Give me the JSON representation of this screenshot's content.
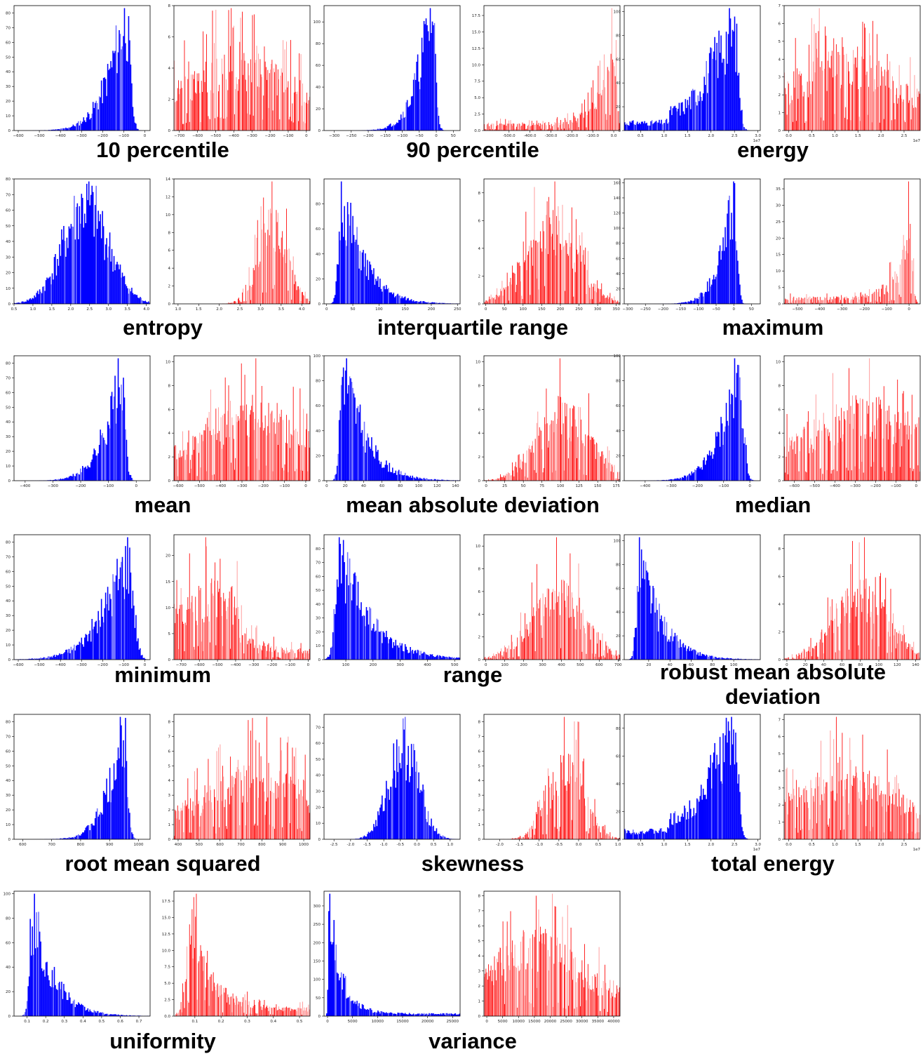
{
  "colors": {
    "left_hist": "#0000ff",
    "right_hist": "#ff0000",
    "axis": "#000000",
    "tick_text": "#222222"
  },
  "chart_data": [
    {
      "caption": "10 percentile",
      "type": "bar",
      "left": {
        "bins": 130,
        "ylim": [
          0,
          85
        ],
        "yticks": [
          0,
          10,
          20,
          30,
          40,
          50,
          60,
          70,
          80
        ],
        "xticks": [
          -600,
          -500,
          -400,
          -300,
          -200,
          -100,
          0
        ],
        "xlim": [
          -620,
          25
        ],
        "shape": "skewleft",
        "peak": -90,
        "spread": 110,
        "seed": 11
      },
      "right": {
        "bins": 160,
        "ylim": [
          0,
          8
        ],
        "yticks": [
          0,
          2,
          4,
          6,
          8
        ],
        "xticks": [
          -700,
          -600,
          -500,
          -400,
          -300,
          -200,
          -100,
          0
        ],
        "xlim": [
          -730,
          20
        ],
        "shape": "flat",
        "center": -380,
        "spread": 260,
        "seed": 12
      }
    },
    {
      "caption": "90 percentile",
      "type": "bar",
      "left": {
        "bins": 130,
        "ylim": [
          0,
          115
        ],
        "yticks": [
          0,
          20,
          40,
          60,
          80,
          100
        ],
        "xticks": [
          -300,
          -250,
          -200,
          -150,
          -100,
          -50,
          0,
          50
        ],
        "xlim": [
          -330,
          70
        ],
        "shape": "skewleft",
        "peak": -12,
        "spread": 55,
        "seed": 21
      },
      "right": {
        "bins": 160,
        "ylim": [
          0,
          19
        ],
        "yticks": [
          0.0,
          2.5,
          5.0,
          7.5,
          10.0,
          12.5,
          15.0,
          17.5
        ],
        "tickfmt": 1,
        "xticks": [
          -500,
          -400,
          -300,
          -200,
          -100,
          0
        ],
        "xlim": [
          -620,
          30
        ],
        "shape": "rise",
        "peak": 0,
        "spread": 300,
        "seed": 22
      }
    },
    {
      "caption": "energy",
      "type": "bar",
      "left": {
        "bins": 130,
        "ylim": [
          0,
          105
        ],
        "yticks": [
          0,
          20,
          40,
          60,
          80,
          100
        ],
        "xticks": [
          0.5,
          1.0,
          1.5,
          2.0,
          2.5,
          3.0
        ],
        "xlim": [
          0.15,
          3.05
        ],
        "exp": "1e7",
        "shape": "energy",
        "peak": 2.5,
        "spread": 0.6,
        "seed": 31
      },
      "right": {
        "bins": 160,
        "ylim": [
          0,
          7
        ],
        "yticks": [
          0,
          1,
          2,
          3,
          4,
          5,
          6,
          7
        ],
        "xticks": [
          0.0,
          0.5,
          1.0,
          1.5,
          2.0,
          2.5,
          3.0
        ],
        "xlim": [
          -0.1,
          2.85
        ],
        "exp": "1e7",
        "shape": "flat",
        "center": 1.2,
        "spread": 0.9,
        "seed": 32
      }
    },
    {
      "caption": "entropy",
      "type": "bar",
      "left": {
        "bins": 130,
        "ylim": [
          0,
          80
        ],
        "yticks": [
          0,
          10,
          20,
          30,
          40,
          50,
          60,
          70,
          80
        ],
        "xticks": [
          0.5,
          1.0,
          1.5,
          2.0,
          2.5,
          3.0,
          3.5,
          4.0
        ],
        "xlim": [
          0.5,
          4.1
        ],
        "shape": "normal",
        "center": 2.4,
        "spread": 0.6,
        "seed": 41
      },
      "right": {
        "bins": 160,
        "ylim": [
          0,
          14
        ],
        "yticks": [
          0,
          2,
          4,
          6,
          8,
          10,
          12,
          14
        ],
        "xticks": [
          1.0,
          1.5,
          2.0,
          2.5,
          3.0,
          3.5,
          4.0
        ],
        "xlim": [
          0.9,
          4.2
        ],
        "shape": "normal",
        "center": 3.3,
        "spread": 0.35,
        "seed": 42
      }
    },
    {
      "caption": "interquartile range",
      "type": "bar",
      "left": {
        "bins": 130,
        "ylim": [
          0,
          100
        ],
        "yticks": [
          0,
          20,
          40,
          60,
          80
        ],
        "xticks": [
          0,
          50,
          100,
          150,
          200,
          250
        ],
        "xlim": [
          -5,
          255
        ],
        "shape": "skewright",
        "peak": 30,
        "spread": 45,
        "seed": 51
      },
      "right": {
        "bins": 160,
        "ylim": [
          0,
          9
        ],
        "yticks": [
          0,
          2,
          4,
          6,
          8
        ],
        "xticks": [
          0,
          50,
          100,
          150,
          200,
          250,
          300,
          350
        ],
        "xlim": [
          -5,
          360
        ],
        "shape": "normal",
        "center": 175,
        "spread": 70,
        "seed": 52
      }
    },
    {
      "caption": "maximum",
      "type": "bar",
      "left": {
        "bins": 130,
        "ylim": [
          0,
          165
        ],
        "yticks": [
          0,
          20,
          40,
          60,
          80,
          100,
          120,
          140,
          160
        ],
        "xticks": [
          -300,
          -250,
          -200,
          -150,
          -100,
          -50,
          0,
          50
        ],
        "xlim": [
          -310,
          75
        ],
        "shape": "skewleft",
        "peak": 0,
        "spread": 50,
        "seed": 61
      },
      "right": {
        "bins": 160,
        "ylim": [
          0,
          38
        ],
        "yticks": [
          0,
          5,
          10,
          15,
          20,
          25,
          30,
          35
        ],
        "xticks": [
          -500,
          -400,
          -300,
          -200,
          -100,
          0
        ],
        "xlim": [
          -560,
          50
        ],
        "shape": "rise",
        "peak": 0,
        "spread": 230,
        "seed": 62
      }
    },
    {
      "caption": "mean",
      "type": "bar",
      "left": {
        "bins": 130,
        "ylim": [
          0,
          85
        ],
        "yticks": [
          0,
          10,
          20,
          30,
          40,
          50,
          60,
          70,
          80
        ],
        "xticks": [
          -400,
          -300,
          -200,
          -100,
          0
        ],
        "xlim": [
          -440,
          50
        ],
        "shape": "skewleft",
        "peak": -55,
        "spread": 80,
        "seed": 71
      },
      "right": {
        "bins": 160,
        "ylim": [
          0,
          10.5
        ],
        "yticks": [
          0,
          2,
          4,
          6,
          8,
          10
        ],
        "xticks": [
          -600,
          -500,
          -400,
          -300,
          -200,
          -100,
          0
        ],
        "xlim": [
          -620,
          20
        ],
        "shape": "flat",
        "center": -230,
        "spread": 200,
        "seed": 72
      }
    },
    {
      "caption": "mean absolute deviation",
      "type": "bar",
      "left": {
        "bins": 130,
        "ylim": [
          0,
          100
        ],
        "yticks": [
          0,
          20,
          40,
          60,
          80,
          100
        ],
        "xticks": [
          0,
          20,
          40,
          60,
          80,
          100,
          120,
          140
        ],
        "xlim": [
          -3,
          145
        ],
        "shape": "skewright",
        "peak": 18,
        "spread": 25,
        "seed": 81
      },
      "right": {
        "bins": 160,
        "ylim": [
          0,
          10.5
        ],
        "yticks": [
          0,
          2,
          4,
          6,
          8,
          10
        ],
        "xticks": [
          0,
          25,
          50,
          75,
          100,
          125,
          150,
          175
        ],
        "xlim": [
          -3,
          180
        ],
        "shape": "normal",
        "center": 105,
        "spread": 35,
        "seed": 82
      }
    },
    {
      "caption": "median",
      "type": "bar",
      "left": {
        "bins": 130,
        "ylim": [
          0,
          100
        ],
        "yticks": [
          0,
          20,
          40,
          60,
          80,
          100
        ],
        "xticks": [
          -400,
          -300,
          -200,
          -100,
          0
        ],
        "xlim": [
          -480,
          40
        ],
        "shape": "skewleft",
        "peak": -40,
        "spread": 90,
        "seed": 91
      },
      "right": {
        "bins": 160,
        "ylim": [
          0,
          10.5
        ],
        "yticks": [
          0,
          2,
          4,
          6,
          8,
          10
        ],
        "xticks": [
          -600,
          -500,
          -400,
          -300,
          -200,
          -100,
          0
        ],
        "xlim": [
          -650,
          20
        ],
        "shape": "flat",
        "center": -250,
        "spread": 230,
        "seed": 92
      }
    },
    {
      "caption": "minimum",
      "type": "bar",
      "left": {
        "bins": 130,
        "ylim": [
          0,
          85
        ],
        "yticks": [
          0,
          10,
          20,
          30,
          40,
          50,
          60,
          70,
          80
        ],
        "xticks": [
          -600,
          -500,
          -400,
          -300,
          -200,
          -100,
          0
        ],
        "xlim": [
          -620,
          25
        ],
        "shape": "skewleft",
        "peak": -80,
        "spread": 150,
        "seed": 101
      },
      "right": {
        "bins": 160,
        "ylim": [
          0,
          24
        ],
        "yticks": [
          0,
          5,
          10,
          15,
          20
        ],
        "xticks": [
          -700,
          -600,
          -500,
          -400,
          -300,
          -200,
          -100,
          0
        ],
        "xlim": [
          -740,
          10
        ],
        "shape": "spiky",
        "center": -520,
        "spread": 150,
        "seed": 102
      }
    },
    {
      "caption": "range",
      "type": "bar",
      "left": {
        "bins": 130,
        "ylim": [
          0,
          90
        ],
        "yticks": [
          0,
          10,
          20,
          30,
          40,
          50,
          60,
          70,
          80
        ],
        "xticks": [
          100,
          200,
          300,
          400,
          500
        ],
        "xlim": [
          20,
          520
        ],
        "shape": "skewright",
        "peak": 80,
        "spread": 120,
        "seed": 111
      },
      "right": {
        "bins": 160,
        "ylim": [
          0,
          11
        ],
        "yticks": [
          0,
          2,
          4,
          6,
          8,
          10
        ],
        "xticks": [
          0,
          100,
          200,
          300,
          400,
          500,
          600,
          700
        ],
        "xlim": [
          -10,
          710
        ],
        "shape": "normal",
        "center": 380,
        "spread": 140,
        "seed": 112
      }
    },
    {
      "caption": "robust mean absolute deviation",
      "type": "bar",
      "left": {
        "bins": 130,
        "ylim": [
          0,
          105
        ],
        "yticks": [
          0,
          20,
          40,
          60,
          80,
          100
        ],
        "xticks": [
          20,
          40,
          60,
          80,
          100
        ],
        "xlim": [
          -3,
          125
        ],
        "shape": "skewright",
        "peak": 12,
        "spread": 22,
        "seed": 121
      },
      "right": {
        "bins": 160,
        "ylim": [
          0,
          9
        ],
        "yticks": [
          0,
          2,
          4,
          6,
          8
        ],
        "xticks": [
          0,
          20,
          40,
          60,
          80,
          100,
          120,
          140
        ],
        "xlim": [
          -3,
          145
        ],
        "shape": "normal",
        "center": 80,
        "spread": 30,
        "seed": 122
      }
    },
    {
      "caption": "root mean squared",
      "type": "bar",
      "left": {
        "bins": 130,
        "ylim": [
          0,
          85
        ],
        "yticks": [
          0,
          10,
          20,
          30,
          40,
          50,
          60,
          70,
          80
        ],
        "xticks": [
          600,
          700,
          800,
          900,
          1000
        ],
        "xlim": [
          570,
          1040
        ],
        "shape": "skewleft",
        "peak": 950,
        "spread": 70,
        "seed": 131
      },
      "right": {
        "bins": 160,
        "ylim": [
          0,
          8.5
        ],
        "yticks": [
          0,
          1,
          2,
          3,
          4,
          5,
          6,
          7,
          8
        ],
        "xticks": [
          400,
          500,
          600,
          700,
          800,
          900,
          1000
        ],
        "xlim": [
          380,
          1030
        ],
        "shape": "flat",
        "center": 780,
        "spread": 200,
        "seed": 132
      }
    },
    {
      "caption": "skewness",
      "type": "bar",
      "left": {
        "bins": 130,
        "ylim": [
          0,
          78
        ],
        "yticks": [
          0,
          10,
          20,
          30,
          40,
          50,
          60,
          70
        ],
        "xticks": [
          -2.5,
          -2.0,
          -1.5,
          -1.0,
          -0.5,
          0.0,
          0.5,
          1.0
        ],
        "xlim": [
          -2.8,
          1.3
        ],
        "shape": "normal",
        "center": -0.4,
        "spread": 0.45,
        "seed": 141
      },
      "right": {
        "bins": 160,
        "ylim": [
          0,
          8.5
        ],
        "yticks": [
          0,
          1,
          2,
          3,
          4,
          5,
          6,
          7,
          8
        ],
        "xticks": [
          -2.0,
          -1.5,
          -1.0,
          -0.5,
          0.0,
          0.5,
          1.0
        ],
        "xlim": [
          -2.4,
          1.05
        ],
        "shape": "normal",
        "center": -0.3,
        "spread": 0.45,
        "seed": 142
      }
    },
    {
      "caption": "total energy",
      "type": "bar",
      "left": {
        "bins": 130,
        "ylim": [
          0,
          90
        ],
        "yticks": [
          0,
          20,
          40,
          60,
          80
        ],
        "xticks": [
          0.5,
          1.0,
          1.5,
          2.0,
          2.5,
          3.0
        ],
        "xlim": [
          0.15,
          3.05
        ],
        "exp": "1e7",
        "shape": "energy",
        "peak": 2.5,
        "spread": 0.6,
        "seed": 151
      },
      "right": {
        "bins": 160,
        "ylim": [
          0,
          7.3
        ],
        "yticks": [
          0,
          1,
          2,
          3,
          4,
          5,
          6,
          7
        ],
        "xticks": [
          0.0,
          0.5,
          1.0,
          1.5,
          2.0,
          2.5
        ],
        "xlim": [
          -0.1,
          2.85
        ],
        "exp": "1e7",
        "shape": "flat",
        "center": 1.2,
        "spread": 0.9,
        "seed": 152
      }
    },
    {
      "caption": "uniformity",
      "type": "bar",
      "left": {
        "bins": 130,
        "ylim": [
          0,
          102
        ],
        "yticks": [
          0,
          20,
          40,
          60,
          80,
          100
        ],
        "xticks": [
          0.1,
          0.2,
          0.3,
          0.4,
          0.5,
          0.6,
          0.7
        ],
        "xlim": [
          0.03,
          0.76
        ],
        "shape": "skewright",
        "peak": 0.13,
        "spread": 0.12,
        "seed": 161
      },
      "right": {
        "bins": 160,
        "ylim": [
          0,
          19
        ],
        "yticks": [
          0.0,
          2.5,
          5.0,
          7.5,
          10.0,
          12.5,
          15.0,
          17.5
        ],
        "tickfmt": 1,
        "xticks": [
          0.1,
          0.2,
          0.3,
          0.4,
          0.5
        ],
        "xlim": [
          0.02,
          0.54
        ],
        "shape": "spikyright",
        "peak": 0.09,
        "spread": 0.08,
        "seed": 162
      }
    },
    {
      "caption": "variance",
      "type": "bar",
      "left": {
        "bins": 130,
        "ylim": [
          0,
          340
        ],
        "yticks": [
          0,
          50,
          100,
          150,
          200,
          250,
          300
        ],
        "xticks": [
          0,
          5000,
          10000,
          15000,
          20000,
          25000
        ],
        "xlim": [
          -700,
          26500
        ],
        "shape": "decay",
        "peak": 400,
        "spread": 2500,
        "seed": 171
      },
      "right": {
        "bins": 160,
        "ylim": [
          0,
          8.3
        ],
        "yticks": [
          0,
          1,
          2,
          3,
          4,
          5,
          6,
          7,
          8
        ],
        "xticks": [
          0,
          5000,
          10000,
          15000,
          20000,
          25000,
          30000,
          35000,
          40000
        ],
        "xlim": [
          -900,
          42000
        ],
        "shape": "flat",
        "center": 15000,
        "spread": 11000,
        "seed": 172
      }
    }
  ]
}
